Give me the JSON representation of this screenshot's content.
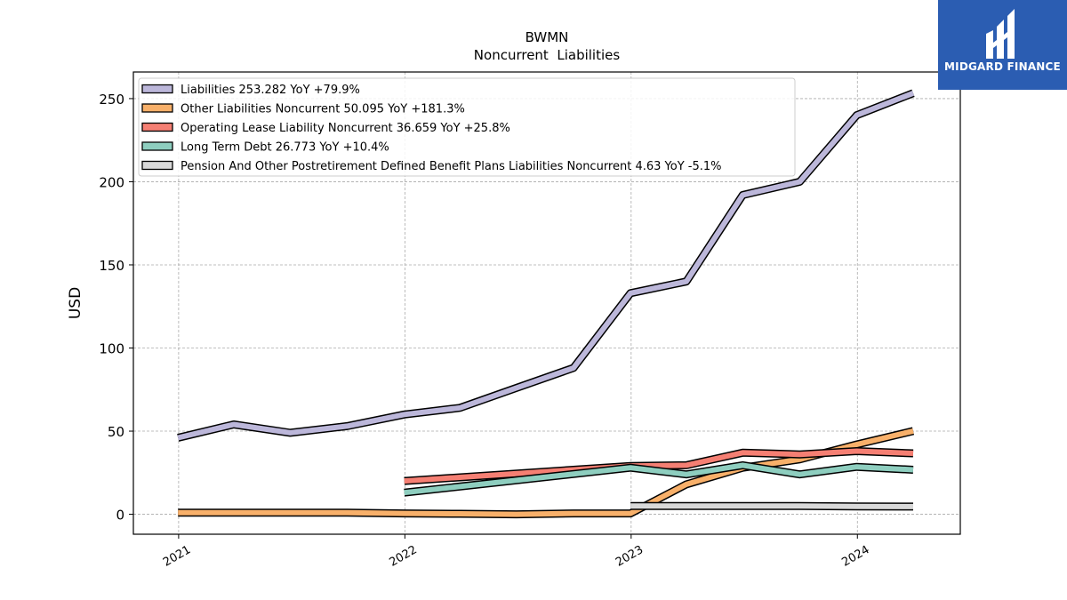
{
  "chart_data": {
    "type": "line",
    "title": "BWMN",
    "subtitle": "Noncurrent  Liabilities",
    "ylabel": "USD",
    "xlabel": "",
    "ylim": [
      -12,
      266
    ],
    "xlim": [
      "2020-10-20",
      "2024-06-15"
    ],
    "yticks": [
      0,
      50,
      100,
      150,
      200,
      250
    ],
    "xticks": [
      {
        "date": "2021-01-01",
        "label": "2021"
      },
      {
        "date": "2022-01-01",
        "label": "2022"
      },
      {
        "date": "2023-01-01",
        "label": "2023"
      },
      {
        "date": "2024-01-01",
        "label": "2024"
      }
    ],
    "grid": true,
    "legend_position": "top-left",
    "series": [
      {
        "name": "Liabilities",
        "legend": "Liabilities  253.282 YoY +79.9%",
        "color": "#bcb7da",
        "points": [
          [
            "2020-12-31",
            46
          ],
          [
            "2021-03-31",
            54
          ],
          [
            "2021-06-30",
            49
          ],
          [
            "2021-09-30",
            53
          ],
          [
            "2021-12-31",
            60
          ],
          [
            "2022-03-31",
            64
          ],
          [
            "2022-06-30",
            76
          ],
          [
            "2022-09-30",
            88
          ],
          [
            "2022-12-31",
            133
          ],
          [
            "2023-03-31",
            140
          ],
          [
            "2023-06-30",
            192
          ],
          [
            "2023-09-30",
            200
          ],
          [
            "2023-12-31",
            240
          ],
          [
            "2024-03-31",
            253.282
          ]
        ]
      },
      {
        "name": "Other Liabilities Noncurrent",
        "legend": "Other Liabilities Noncurrent  50.095 YoY +181.3%",
        "color": "#f8b06a",
        "points": [
          [
            "2020-12-31",
            1
          ],
          [
            "2021-03-31",
            1
          ],
          [
            "2021-06-30",
            1
          ],
          [
            "2021-09-30",
            1
          ],
          [
            "2021-12-31",
            0.5
          ],
          [
            "2022-03-31",
            0.3
          ],
          [
            "2022-06-30",
            0
          ],
          [
            "2022-09-30",
            0.5
          ],
          [
            "2022-12-31",
            0.5
          ],
          [
            "2023-03-31",
            18
          ],
          [
            "2023-06-30",
            28
          ],
          [
            "2023-09-30",
            33
          ],
          [
            "2023-12-31",
            42
          ],
          [
            "2024-03-31",
            50.095
          ]
        ]
      },
      {
        "name": "Operating Lease Liability Noncurrent",
        "legend": "Operating Lease Liability Noncurrent  36.659 YoY +25.8%",
        "color": "#f57f73",
        "points": [
          [
            "2021-12-31",
            20
          ],
          [
            "2022-12-31",
            29
          ],
          [
            "2023-03-31",
            29.5
          ],
          [
            "2023-06-30",
            37
          ],
          [
            "2023-09-30",
            36
          ],
          [
            "2023-12-31",
            38
          ],
          [
            "2024-03-31",
            36.659
          ]
        ]
      },
      {
        "name": "Long Term Debt",
        "legend": "Long Term Debt  26.773 YoY +10.4%",
        "color": "#8ecebf",
        "points": [
          [
            "2021-12-31",
            13
          ],
          [
            "2022-12-31",
            28
          ],
          [
            "2023-03-31",
            24
          ],
          [
            "2023-06-30",
            29.5
          ],
          [
            "2023-09-30",
            24
          ],
          [
            "2023-12-31",
            28.5
          ],
          [
            "2024-03-31",
            26.773
          ]
        ]
      },
      {
        "name": "Pension And Other Postretirement Defined Benefit Plans Liabilities Noncurrent",
        "legend": "Pension And Other Postretirement Defined Benefit Plans Liabilities Noncurrent  4.63 YoY -5.1%",
        "color": "#d9d9d9",
        "points": [
          [
            "2022-12-31",
            5
          ],
          [
            "2023-03-31",
            5
          ],
          [
            "2023-06-30",
            5
          ],
          [
            "2023-09-30",
            5
          ],
          [
            "2023-12-31",
            4.7
          ],
          [
            "2024-03-31",
            4.63
          ]
        ]
      }
    ]
  },
  "logo": {
    "text": "MIDGARD FINANCE",
    "background": "#2b5db2"
  }
}
